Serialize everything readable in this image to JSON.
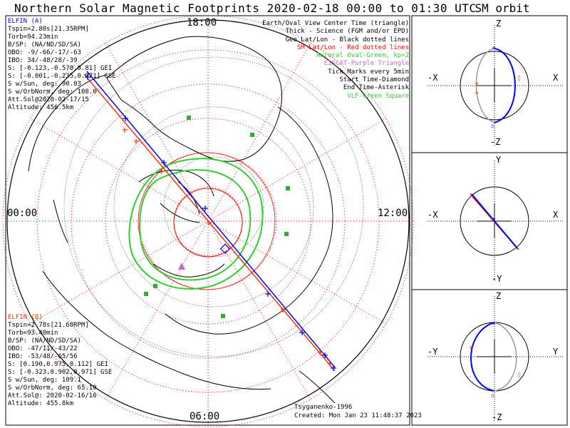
{
  "title": "Northern Solar Magnetic Footprints 2020-02-18 00:00 to 01:30 UTC",
  "sm_orbit_title": "SM orbit",
  "clock_labels": {
    "top": "18:00",
    "left": "00:00",
    "right": "12:00",
    "bottom": "06:00"
  },
  "legend": [
    {
      "text": "Earth/Oval View Center Time (triangle)",
      "color": "#000000"
    },
    {
      "text": "Thick - Science (FGM and/or EPD)",
      "color": "#000000"
    },
    {
      "text": "Geo Lat/Lon - Black dotted lines",
      "color": "#000000"
    },
    {
      "text": "SM Lat/Lon - Red dotted lines",
      "color": "#ff0000"
    },
    {
      "text": "Auroral Oval-Green, kp=2",
      "color": "#33cc33"
    },
    {
      "text": "EISCAT-Purple Triangle",
      "color": "#cc66cc"
    },
    {
      "text": "Tick Marks every 5min",
      "color": "#000000"
    },
    {
      "text": "Start Time-Diamond",
      "color": "#000000"
    },
    {
      "text": "End Time-Asterisk",
      "color": "#000000"
    },
    {
      "text": "VLF-Green Square",
      "color": "#33cc33"
    }
  ],
  "elfin_a": {
    "name": "ELFIN (A)",
    "color": "#0000ff",
    "lines": [
      "Tspin=2.80s[21.35RPM]",
      "Torb=94.23min",
      "B/SP: (NA/ND/SD/SA)",
      "OBO: -9/-66/-17/-63",
      "IBO: 34/-48/28/-39",
      "S: [-0.123,-0.570,0.81] GEI",
      "S: [-0.001,-0.235,0.971] GSE",
      "S w/Sun, deg: 90.03",
      "S w/OrbNorm, deg: 108.0",
      "Att.Sol@2020-02-17/15",
      "Altitude: 456.5km"
    ]
  },
  "elfin_b": {
    "name": "ELFIN (B)",
    "color": "#ff3300",
    "lines": [
      "Tspin=2.78s[21.68RPM]",
      "Torb=93.40min",
      "B/SP: (NA/ND/SD/SA)",
      "OBO: -47/11/-43/22",
      "IBO: -53/48/-65/56",
      "S: [0.190,0.975,0.112] GEI",
      "S: [-0.323,0.902,0.971] GSE",
      "S w/Sun, deg: 109.1",
      "S w/OrbNorm, deg: 65.10",
      "Att.Sol@: 2020-02-16/16",
      "Altitude: 455.8km"
    ]
  },
  "credit": "Tsyganenko-1996",
  "created": "Created: Mon Jan 23 11:48:37 2023",
  "panel1": {
    "top": "Z",
    "bottom": "-Z",
    "left": "-X",
    "right": "X"
  },
  "panel2": {
    "top": "Y",
    "bottom": "-Y",
    "left": "-X",
    "right": "X"
  },
  "panel3": {
    "top": "Z",
    "bottom": "-Z",
    "left": "-Y",
    "right": "Y"
  },
  "colors": {
    "sat_a": "#0000ff",
    "sat_b": "#ff3300",
    "oval": "#33cc33",
    "sm_grid": "#ff0000"
  }
}
